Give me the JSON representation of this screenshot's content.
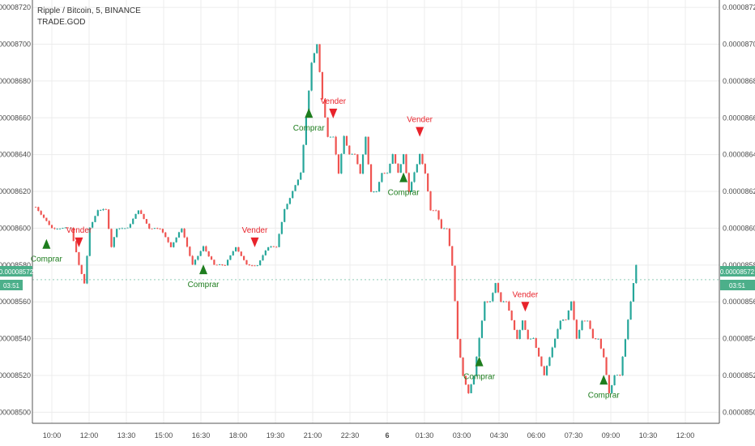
{
  "header": {
    "title": "Ripple / Bitcoin, 5, BINANCE",
    "indicator": "TRADE.GOD"
  },
  "colors": {
    "up": "#26a69a",
    "down": "#ef5350",
    "buy": "#1e7d1e",
    "sell": "#e8232b",
    "price_badge": "#4caf8a",
    "grid": "#ececec",
    "axis_text": "#4a4a4a"
  },
  "price_badge": {
    "left_price": "0.00008572",
    "left_countdown": "03:51",
    "right_price": "0.00008572",
    "right_countdown": "03:51"
  },
  "chart_data": {
    "type": "candlestick",
    "title": "Ripple / Bitcoin, 5, BINANCE",
    "ylim": [
      8.494e-05,
      8.724e-05
    ],
    "y_ticks": [
      "0.00008500",
      "0.00008520",
      "0.00008540",
      "0.00008560",
      "0.00008580",
      "0.00008600",
      "0.00008620",
      "0.00008640",
      "0.00008660",
      "0.00008680",
      "0.00008700",
      "0.00008720"
    ],
    "x_ticks": [
      "10:00",
      "12:00",
      "13:30",
      "15:00",
      "16:30",
      "18:00",
      "19:30",
      "21:00",
      "22:30",
      "6",
      "01:30",
      "03:00",
      "04:30",
      "06:00",
      "07:30",
      "09:00",
      "10:30",
      "12:00"
    ],
    "current_price": 8.572e-05,
    "series": [
      {
        "t": 0,
        "p": 8.6115e-05
      },
      {
        "t": 6,
        "p": 8.6e-05
      },
      {
        "t": 10,
        "p": 8.6e-05
      },
      {
        "t": 13,
        "p": 8.6e-05
      },
      {
        "t": 16,
        "p": 8.58e-05
      },
      {
        "t": 18,
        "p": 8.57e-05
      },
      {
        "t": 20,
        "p": 8.6e-05
      },
      {
        "t": 23,
        "p": 8.61e-05
      },
      {
        "t": 26,
        "p": 8.61e-05
      },
      {
        "t": 28,
        "p": 8.59e-05
      },
      {
        "t": 30,
        "p": 8.6e-05
      },
      {
        "t": 34,
        "p": 8.6e-05
      },
      {
        "t": 38,
        "p": 8.61e-05
      },
      {
        "t": 42,
        "p": 8.6e-05
      },
      {
        "t": 46,
        "p": 8.6e-05
      },
      {
        "t": 50,
        "p": 8.59e-05
      },
      {
        "t": 54,
        "p": 8.6e-05
      },
      {
        "t": 58,
        "p": 8.58e-05
      },
      {
        "t": 62,
        "p": 8.59e-05
      },
      {
        "t": 66,
        "p": 8.58e-05
      },
      {
        "t": 70,
        "p": 8.58e-05
      },
      {
        "t": 74,
        "p": 8.59e-05
      },
      {
        "t": 78,
        "p": 8.58e-05
      },
      {
        "t": 82,
        "p": 8.58e-05
      },
      {
        "t": 86,
        "p": 8.59e-05
      },
      {
        "t": 89,
        "p": 8.59e-05
      },
      {
        "t": 92,
        "p": 8.61e-05
      },
      {
        "t": 95,
        "p": 8.62e-05
      },
      {
        "t": 98,
        "p": 8.63e-05
      },
      {
        "t": 100,
        "p": 8.66e-05
      },
      {
        "t": 102,
        "p": 8.69e-05
      },
      {
        "t": 104,
        "p": 8.7e-05
      },
      {
        "t": 106,
        "p": 8.67e-05
      },
      {
        "t": 108,
        "p": 8.65e-05
      },
      {
        "t": 110,
        "p": 8.65e-05
      },
      {
        "t": 112,
        "p": 8.63e-05
      },
      {
        "t": 114,
        "p": 8.65e-05
      },
      {
        "t": 116,
        "p": 8.64e-05
      },
      {
        "t": 118,
        "p": 8.64e-05
      },
      {
        "t": 120,
        "p": 8.63e-05
      },
      {
        "t": 122,
        "p": 8.65e-05
      },
      {
        "t": 124,
        "p": 8.62e-05
      },
      {
        "t": 126,
        "p": 8.62e-05
      },
      {
        "t": 128,
        "p": 8.63e-05
      },
      {
        "t": 130,
        "p": 8.63e-05
      },
      {
        "t": 132,
        "p": 8.64e-05
      },
      {
        "t": 134,
        "p": 8.63e-05
      },
      {
        "t": 136,
        "p": 8.64e-05
      },
      {
        "t": 138,
        "p": 8.62e-05
      },
      {
        "t": 140,
        "p": 8.63e-05
      },
      {
        "t": 142,
        "p": 8.64e-05
      },
      {
        "t": 144,
        "p": 8.63e-05
      },
      {
        "t": 146,
        "p": 8.61e-05
      },
      {
        "t": 148,
        "p": 8.61e-05
      },
      {
        "t": 150,
        "p": 8.6e-05
      },
      {
        "t": 152,
        "p": 8.6e-05
      },
      {
        "t": 154,
        "p": 8.58e-05
      },
      {
        "t": 156,
        "p": 8.54e-05
      },
      {
        "t": 158,
        "p": 8.52e-05
      },
      {
        "t": 160,
        "p": 8.51e-05
      },
      {
        "t": 162,
        "p": 8.52e-05
      },
      {
        "t": 164,
        "p": 8.54e-05
      },
      {
        "t": 166,
        "p": 8.56e-05
      },
      {
        "t": 168,
        "p": 8.56e-05
      },
      {
        "t": 170,
        "p": 8.57e-05
      },
      {
        "t": 172,
        "p": 8.56e-05
      },
      {
        "t": 174,
        "p": 8.56e-05
      },
      {
        "t": 176,
        "p": 8.55e-05
      },
      {
        "t": 178,
        "p": 8.54e-05
      },
      {
        "t": 180,
        "p": 8.55e-05
      },
      {
        "t": 182,
        "p": 8.54e-05
      },
      {
        "t": 184,
        "p": 8.54e-05
      },
      {
        "t": 186,
        "p": 8.53e-05
      },
      {
        "t": 188,
        "p": 8.52e-05
      },
      {
        "t": 190,
        "p": 8.53e-05
      },
      {
        "t": 192,
        "p": 8.54e-05
      },
      {
        "t": 194,
        "p": 8.55e-05
      },
      {
        "t": 196,
        "p": 8.55e-05
      },
      {
        "t": 198,
        "p": 8.56e-05
      },
      {
        "t": 200,
        "p": 8.54e-05
      },
      {
        "t": 202,
        "p": 8.55e-05
      },
      {
        "t": 204,
        "p": 8.55e-05
      },
      {
        "t": 206,
        "p": 8.54e-05
      },
      {
        "t": 208,
        "p": 8.54e-05
      },
      {
        "t": 210,
        "p": 8.53e-05
      },
      {
        "t": 212,
        "p": 8.51e-05
      },
      {
        "t": 214,
        "p": 8.52e-05
      },
      {
        "t": 216,
        "p": 8.52e-05
      },
      {
        "t": 218,
        "p": 8.54e-05
      },
      {
        "t": 220,
        "p": 8.56e-05
      },
      {
        "t": 222,
        "p": 8.58e-05
      }
    ],
    "signals": [
      {
        "type": "buy",
        "label": "Comprar",
        "t": 4
      },
      {
        "type": "sell",
        "label": "Vender",
        "t": 16
      },
      {
        "type": "buy",
        "label": "Comprar",
        "t": 62
      },
      {
        "type": "sell",
        "label": "Vender",
        "t": 81
      },
      {
        "type": "buy",
        "label": "Comprar",
        "t": 101
      },
      {
        "type": "sell",
        "label": "Vender",
        "t": 110
      },
      {
        "type": "buy",
        "label": "Comprar",
        "t": 136
      },
      {
        "type": "sell",
        "label": "Vender",
        "t": 142
      },
      {
        "type": "buy",
        "label": "Comprar",
        "t": 164
      },
      {
        "type": "sell",
        "label": "Vender",
        "t": 181
      },
      {
        "type": "buy",
        "label": "Comprar",
        "t": 210
      }
    ]
  }
}
